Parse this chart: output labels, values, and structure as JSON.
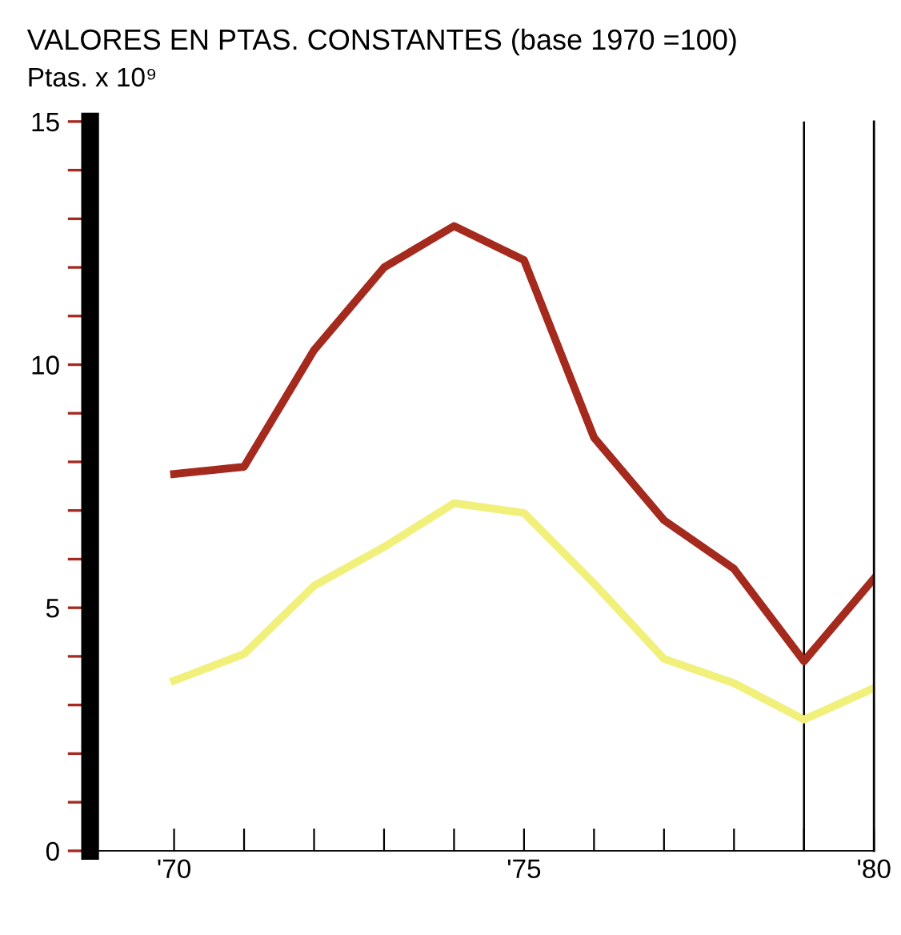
{
  "chart_data": {
    "type": "line",
    "title": "VALORES EN PTAS. CONSTANTES (base 1970 =100)",
    "ylabel": "Ptas. x 10⁹",
    "x": [
      70,
      71,
      72,
      73,
      74,
      75,
      76,
      77,
      78,
      79,
      80
    ],
    "series": [
      {
        "color": "#a52a1e",
        "values": [
          7.75,
          7.9,
          10.3,
          12.0,
          12.85,
          12.15,
          8.5,
          6.8,
          5.8,
          3.9,
          5.6
        ]
      },
      {
        "color": "#f0f07a",
        "values": [
          3.5,
          4.05,
          5.45,
          6.25,
          7.15,
          6.95,
          5.5,
          3.95,
          3.45,
          2.7,
          3.35
        ]
      }
    ],
    "xlim": [
      68.8,
      80
    ],
    "xticks": [
      {
        "value": 70,
        "label": "'70"
      },
      {
        "value": 71,
        "label": null
      },
      {
        "value": 72,
        "label": null
      },
      {
        "value": 73,
        "label": null
      },
      {
        "value": 74,
        "label": null
      },
      {
        "value": 75,
        "label": "'75"
      },
      {
        "value": 76,
        "label": null
      },
      {
        "value": 77,
        "label": null
      },
      {
        "value": 78,
        "label": null
      },
      {
        "value": 79,
        "label": null
      },
      {
        "value": 80,
        "label": "'80"
      }
    ],
    "ylim": [
      0,
      15
    ],
    "yticks": [
      0,
      {
        "value": 1,
        "label": null
      },
      {
        "value": 2,
        "label": null
      },
      {
        "value": 3,
        "label": null
      },
      {
        "value": 4,
        "label": null
      },
      5,
      {
        "value": 6,
        "label": null
      },
      {
        "value": 7,
        "label": null
      },
      {
        "value": 8,
        "label": null
      },
      {
        "value": 9,
        "label": null
      },
      10,
      {
        "value": 11,
        "label": null
      },
      {
        "value": 12,
        "label": null
      },
      {
        "value": 13,
        "label": null
      },
      {
        "value": 14,
        "label": null
      },
      15
    ],
    "ref_lines": [
      {
        "axis": "x",
        "value": 79,
        "color": "#000000"
      }
    ],
    "grid": false,
    "legend": false,
    "marker": "none",
    "line_style": "solid"
  }
}
